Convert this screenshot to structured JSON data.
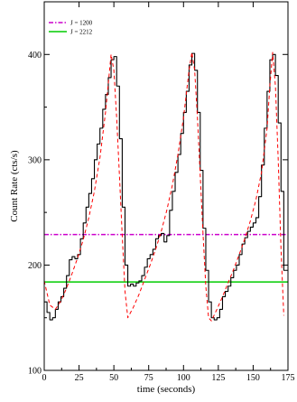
{
  "chart_data": {
    "type": "line",
    "title": "",
    "xlabel": "time (seconds)",
    "ylabel": "Count Rate (cts/s)",
    "xlim": [
      0,
      175
    ],
    "ylim": [
      100,
      450
    ],
    "x_ticks": [
      0,
      25,
      50,
      75,
      100,
      125,
      150,
      175
    ],
    "y_ticks": [
      100,
      200,
      300,
      400
    ],
    "legend_position": "top-left",
    "legend": [
      {
        "label": "J = 1200",
        "color": "#cc00cc",
        "style": "dash-dot"
      },
      {
        "label": "J = 2212",
        "color": "#00cc00",
        "style": "solid"
      }
    ],
    "reference_lines": [
      {
        "name": "J = 1200",
        "y": 229,
        "color": "#cc00cc",
        "style": "dash-dot"
      },
      {
        "name": "J = 2212",
        "y": 184,
        "color": "#00cc00",
        "style": "solid"
      }
    ],
    "series": [
      {
        "style": "step",
        "color": "#000000",
        "x": [
          0,
          2,
          4,
          6,
          8,
          10,
          12,
          14,
          16,
          18,
          20,
          22,
          24,
          26,
          28,
          30,
          32,
          34,
          36,
          38,
          40,
          42,
          44,
          46,
          48,
          50,
          52,
          54,
          56,
          58,
          60,
          62,
          64,
          66,
          68,
          70,
          72,
          74,
          76,
          78,
          80,
          82,
          84,
          86,
          88,
          90,
          92,
          94,
          96,
          98,
          100,
          102,
          104,
          106,
          108,
          110,
          112,
          114,
          116,
          118,
          120,
          122,
          124,
          126,
          128,
          130,
          132,
          134,
          136,
          138,
          140,
          142,
          144,
          146,
          148,
          150,
          152,
          154,
          156,
          158,
          160,
          162,
          164,
          166,
          168,
          170,
          172
        ],
        "y": [
          165,
          155,
          148,
          150,
          158,
          165,
          170,
          178,
          190,
          205,
          208,
          206,
          210,
          225,
          240,
          255,
          268,
          282,
          300,
          315,
          330,
          348,
          362,
          378,
          395,
          398,
          370,
          320,
          255,
          200,
          180,
          182,
          180,
          183,
          185,
          190,
          198,
          206,
          210,
          215,
          225,
          228,
          230,
          222,
          228,
          252,
          270,
          288,
          305,
          325,
          345,
          365,
          390,
          401,
          385,
          345,
          290,
          235,
          195,
          165,
          150,
          148,
          150,
          158,
          170,
          175,
          180,
          188,
          195,
          200,
          210,
          220,
          226,
          232,
          236,
          240,
          245,
          265,
          295,
          330,
          365,
          395,
          400,
          380,
          335,
          270,
          195
        ]
      },
      {
        "style": "dashed",
        "color": "#ff0000",
        "x": [
          0,
          4,
          8,
          12,
          16,
          20,
          24,
          28,
          32,
          36,
          40,
          44,
          48,
          50,
          52,
          54,
          56,
          58,
          60,
          64,
          68,
          72,
          76,
          80,
          84,
          88,
          92,
          96,
          100,
          104,
          106,
          108,
          110,
          112,
          114,
          116,
          118,
          120,
          124,
          128,
          132,
          136,
          140,
          144,
          148,
          152,
          156,
          160,
          162,
          164,
          166,
          168,
          170,
          172
        ],
        "y": [
          185,
          162,
          158,
          166,
          178,
          192,
          207,
          224,
          245,
          270,
          302,
          345,
          400,
          385,
          340,
          285,
          228,
          175,
          150,
          160,
          172,
          186,
          200,
          215,
          232,
          252,
          276,
          305,
          340,
          385,
          402,
          385,
          340,
          285,
          230,
          180,
          150,
          147,
          158,
          170,
          183,
          196,
          210,
          225,
          242,
          262,
          288,
          330,
          370,
          402,
          370,
          300,
          215,
          152
        ]
      }
    ]
  }
}
